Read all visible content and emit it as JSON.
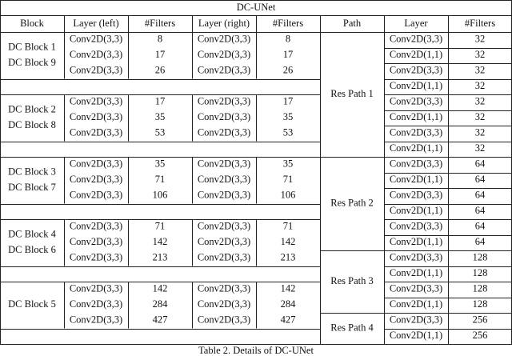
{
  "title": "DC-UNet",
  "headers": [
    "Block",
    "Layer (left)",
    "#Filters",
    "Layer (right)",
    "#Filters",
    "Path",
    "Layer",
    "#Filters"
  ],
  "blocks": [
    {
      "names": [
        "DC Block 1",
        "DC Block 9"
      ],
      "rows": [
        [
          "Conv2D(3,3)",
          8,
          "Conv2D(3,3)",
          8
        ],
        [
          "Conv2D(3,3)",
          17,
          "Conv2D(3,3)",
          17
        ],
        [
          "Conv2D(3,3)",
          26,
          "Conv2D(3,3)",
          26
        ]
      ]
    },
    {
      "names": [
        "DC Block 2",
        "DC Block 8"
      ],
      "rows": [
        [
          "Conv2D(3,3)",
          17,
          "Conv2D(3,3)",
          17
        ],
        [
          "Conv2D(3,3)",
          35,
          "Conv2D(3,3)",
          35
        ],
        [
          "Conv2D(3,3)",
          53,
          "Conv2D(3,3)",
          53
        ]
      ]
    },
    {
      "names": [
        "DC Block 3",
        "DC Block 7"
      ],
      "rows": [
        [
          "Conv2D(3,3)",
          35,
          "Conv2D(3,3)",
          35
        ],
        [
          "Conv2D(3,3)",
          71,
          "Conv2D(3,3)",
          71
        ],
        [
          "Conv2D(3,3)",
          106,
          "Conv2D(3,3)",
          106
        ]
      ]
    },
    {
      "names": [
        "DC Block 4",
        "DC Block 6"
      ],
      "rows": [
        [
          "Conv2D(3,3)",
          71,
          "Conv2D(3,3)",
          71
        ],
        [
          "Conv2D(3,3)",
          142,
          "Conv2D(3,3)",
          142
        ],
        [
          "Conv2D(3,3)",
          213,
          "Conv2D(3,3)",
          213
        ]
      ]
    },
    {
      "names": [
        "DC Block 5"
      ],
      "rows": [
        [
          "Conv2D(3,3)",
          142,
          "Conv2D(3,3)",
          142
        ],
        [
          "Conv2D(3,3)",
          284,
          "Conv2D(3,3)",
          284
        ],
        [
          "Conv2D(3,3)",
          427,
          "Conv2D(3,3)",
          427
        ]
      ]
    }
  ],
  "paths": [
    {
      "name": "Res Path 1",
      "rows": [
        [
          "Conv2D(3,3)",
          32
        ],
        [
          "Conv2D(1,1)",
          32
        ],
        [
          "Conv2D(3,3)",
          32
        ],
        [
          "Conv2D(1,1)",
          32
        ],
        [
          "Conv2D(3,3)",
          32
        ],
        [
          "Conv2D(1,1)",
          32
        ],
        [
          "Conv2D(3,3)",
          32
        ],
        [
          "Conv2D(1,1)",
          32
        ]
      ]
    },
    {
      "name": "Res Path 2",
      "rows": [
        [
          "Conv2D(3,3)",
          64
        ],
        [
          "Conv2D(1,1)",
          64
        ],
        [
          "Conv2D(3,3)",
          64
        ],
        [
          "Conv2D(1,1)",
          64
        ],
        [
          "Conv2D(3,3)",
          64
        ],
        [
          "Conv2D(1,1)",
          64
        ]
      ]
    },
    {
      "name": "Res Path 3",
      "rows": [
        [
          "Conv2D(3,3)",
          128
        ],
        [
          "Conv2D(1,1)",
          128
        ],
        [
          "Conv2D(3,3)",
          128
        ],
        [
          "Conv2D(1,1)",
          128
        ]
      ]
    },
    {
      "name": "Res Path 4",
      "rows": [
        [
          "Conv2D(3,3)",
          256
        ],
        [
          "Conv2D(1,1)",
          256
        ]
      ]
    }
  ],
  "caption": "Table 2. Details of DC-UNet"
}
